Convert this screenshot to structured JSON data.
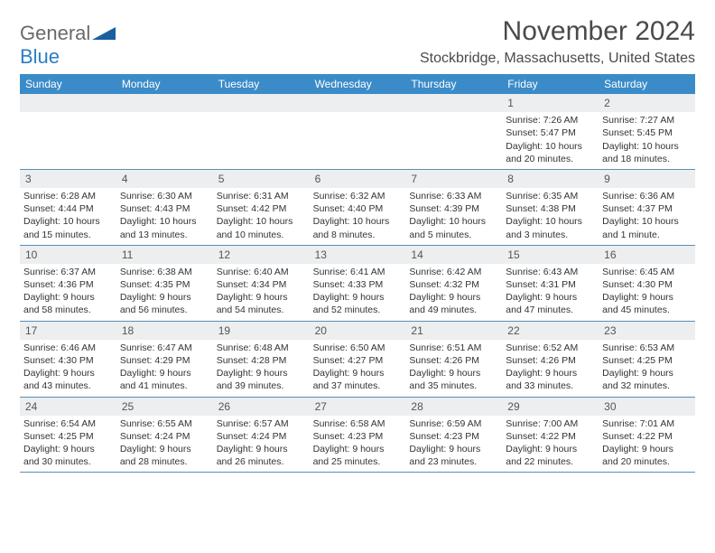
{
  "logo": {
    "general": "General",
    "blue": "Blue"
  },
  "title": "November 2024",
  "location": "Stockbridge, Massachusetts, United States",
  "colors": {
    "header_bg": "#3b8bc9",
    "header_text": "#ffffff",
    "date_bg": "#eceeef",
    "divider": "#5a8fb8",
    "logo_gray": "#6a6a6a",
    "logo_blue": "#2a7fc5",
    "triangle": "#1a5fa0"
  },
  "day_names": [
    "Sunday",
    "Monday",
    "Tuesday",
    "Wednesday",
    "Thursday",
    "Friday",
    "Saturday"
  ],
  "weeks": [
    [
      null,
      null,
      null,
      null,
      null,
      {
        "d": "1",
        "sr": "Sunrise: 7:26 AM",
        "ss": "Sunset: 5:47 PM",
        "dl1": "Daylight: 10 hours",
        "dl2": "and 20 minutes."
      },
      {
        "d": "2",
        "sr": "Sunrise: 7:27 AM",
        "ss": "Sunset: 5:45 PM",
        "dl1": "Daylight: 10 hours",
        "dl2": "and 18 minutes."
      }
    ],
    [
      {
        "d": "3",
        "sr": "Sunrise: 6:28 AM",
        "ss": "Sunset: 4:44 PM",
        "dl1": "Daylight: 10 hours",
        "dl2": "and 15 minutes."
      },
      {
        "d": "4",
        "sr": "Sunrise: 6:30 AM",
        "ss": "Sunset: 4:43 PM",
        "dl1": "Daylight: 10 hours",
        "dl2": "and 13 minutes."
      },
      {
        "d": "5",
        "sr": "Sunrise: 6:31 AM",
        "ss": "Sunset: 4:42 PM",
        "dl1": "Daylight: 10 hours",
        "dl2": "and 10 minutes."
      },
      {
        "d": "6",
        "sr": "Sunrise: 6:32 AM",
        "ss": "Sunset: 4:40 PM",
        "dl1": "Daylight: 10 hours",
        "dl2": "and 8 minutes."
      },
      {
        "d": "7",
        "sr": "Sunrise: 6:33 AM",
        "ss": "Sunset: 4:39 PM",
        "dl1": "Daylight: 10 hours",
        "dl2": "and 5 minutes."
      },
      {
        "d": "8",
        "sr": "Sunrise: 6:35 AM",
        "ss": "Sunset: 4:38 PM",
        "dl1": "Daylight: 10 hours",
        "dl2": "and 3 minutes."
      },
      {
        "d": "9",
        "sr": "Sunrise: 6:36 AM",
        "ss": "Sunset: 4:37 PM",
        "dl1": "Daylight: 10 hours",
        "dl2": "and 1 minute."
      }
    ],
    [
      {
        "d": "10",
        "sr": "Sunrise: 6:37 AM",
        "ss": "Sunset: 4:36 PM",
        "dl1": "Daylight: 9 hours",
        "dl2": "and 58 minutes."
      },
      {
        "d": "11",
        "sr": "Sunrise: 6:38 AM",
        "ss": "Sunset: 4:35 PM",
        "dl1": "Daylight: 9 hours",
        "dl2": "and 56 minutes."
      },
      {
        "d": "12",
        "sr": "Sunrise: 6:40 AM",
        "ss": "Sunset: 4:34 PM",
        "dl1": "Daylight: 9 hours",
        "dl2": "and 54 minutes."
      },
      {
        "d": "13",
        "sr": "Sunrise: 6:41 AM",
        "ss": "Sunset: 4:33 PM",
        "dl1": "Daylight: 9 hours",
        "dl2": "and 52 minutes."
      },
      {
        "d": "14",
        "sr": "Sunrise: 6:42 AM",
        "ss": "Sunset: 4:32 PM",
        "dl1": "Daylight: 9 hours",
        "dl2": "and 49 minutes."
      },
      {
        "d": "15",
        "sr": "Sunrise: 6:43 AM",
        "ss": "Sunset: 4:31 PM",
        "dl1": "Daylight: 9 hours",
        "dl2": "and 47 minutes."
      },
      {
        "d": "16",
        "sr": "Sunrise: 6:45 AM",
        "ss": "Sunset: 4:30 PM",
        "dl1": "Daylight: 9 hours",
        "dl2": "and 45 minutes."
      }
    ],
    [
      {
        "d": "17",
        "sr": "Sunrise: 6:46 AM",
        "ss": "Sunset: 4:30 PM",
        "dl1": "Daylight: 9 hours",
        "dl2": "and 43 minutes."
      },
      {
        "d": "18",
        "sr": "Sunrise: 6:47 AM",
        "ss": "Sunset: 4:29 PM",
        "dl1": "Daylight: 9 hours",
        "dl2": "and 41 minutes."
      },
      {
        "d": "19",
        "sr": "Sunrise: 6:48 AM",
        "ss": "Sunset: 4:28 PM",
        "dl1": "Daylight: 9 hours",
        "dl2": "and 39 minutes."
      },
      {
        "d": "20",
        "sr": "Sunrise: 6:50 AM",
        "ss": "Sunset: 4:27 PM",
        "dl1": "Daylight: 9 hours",
        "dl2": "and 37 minutes."
      },
      {
        "d": "21",
        "sr": "Sunrise: 6:51 AM",
        "ss": "Sunset: 4:26 PM",
        "dl1": "Daylight: 9 hours",
        "dl2": "and 35 minutes."
      },
      {
        "d": "22",
        "sr": "Sunrise: 6:52 AM",
        "ss": "Sunset: 4:26 PM",
        "dl1": "Daylight: 9 hours",
        "dl2": "and 33 minutes."
      },
      {
        "d": "23",
        "sr": "Sunrise: 6:53 AM",
        "ss": "Sunset: 4:25 PM",
        "dl1": "Daylight: 9 hours",
        "dl2": "and 32 minutes."
      }
    ],
    [
      {
        "d": "24",
        "sr": "Sunrise: 6:54 AM",
        "ss": "Sunset: 4:25 PM",
        "dl1": "Daylight: 9 hours",
        "dl2": "and 30 minutes."
      },
      {
        "d": "25",
        "sr": "Sunrise: 6:55 AM",
        "ss": "Sunset: 4:24 PM",
        "dl1": "Daylight: 9 hours",
        "dl2": "and 28 minutes."
      },
      {
        "d": "26",
        "sr": "Sunrise: 6:57 AM",
        "ss": "Sunset: 4:24 PM",
        "dl1": "Daylight: 9 hours",
        "dl2": "and 26 minutes."
      },
      {
        "d": "27",
        "sr": "Sunrise: 6:58 AM",
        "ss": "Sunset: 4:23 PM",
        "dl1": "Daylight: 9 hours",
        "dl2": "and 25 minutes."
      },
      {
        "d": "28",
        "sr": "Sunrise: 6:59 AM",
        "ss": "Sunset: 4:23 PM",
        "dl1": "Daylight: 9 hours",
        "dl2": "and 23 minutes."
      },
      {
        "d": "29",
        "sr": "Sunrise: 7:00 AM",
        "ss": "Sunset: 4:22 PM",
        "dl1": "Daylight: 9 hours",
        "dl2": "and 22 minutes."
      },
      {
        "d": "30",
        "sr": "Sunrise: 7:01 AM",
        "ss": "Sunset: 4:22 PM",
        "dl1": "Daylight: 9 hours",
        "dl2": "and 20 minutes."
      }
    ]
  ]
}
